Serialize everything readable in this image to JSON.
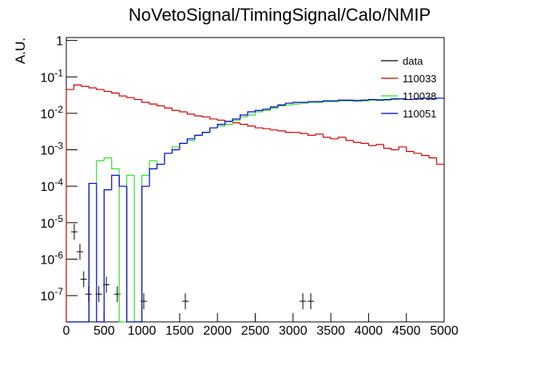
{
  "chart_data": {
    "type": "histogram",
    "title": "NoVetoSignal/TimingSignal/Calo/NMIP",
    "y_label": "A.U.",
    "log_y": true,
    "legend": "top-right",
    "bins": [
      0,
      100,
      200,
      300,
      400,
      500,
      600,
      700,
      800,
      900,
      1000,
      1100,
      1200,
      1300,
      1400,
      1500,
      1600,
      1700,
      1800,
      1900,
      2000,
      2100,
      2200,
      2300,
      2400,
      2500,
      2600,
      2700,
      2800,
      2900,
      3000,
      3100,
      3200,
      3300,
      3400,
      3500,
      3600,
      3700,
      3800,
      3900,
      4000,
      4100,
      4200,
      4300,
      4400,
      4500,
      4600,
      4700,
      4800,
      4900,
      5000
    ],
    "series": [
      {
        "name": "data",
        "color": "#000000",
        "type": "scatter",
        "x": [
          105,
          180,
          230,
          295,
          430,
          530,
          675,
          1025,
          1575,
          3130,
          3235
        ],
        "values": [
          5.6e-06,
          1.6e-06,
          2.8e-07,
          1.1e-07,
          1.1e-07,
          2e-07,
          1.1e-07,
          7e-08,
          7e-08,
          7e-08,
          7e-08
        ]
      },
      {
        "name": "110033",
        "color": "#cc0000",
        "values": [
          0.045,
          0.06,
          0.055,
          0.05,
          0.045,
          0.04,
          0.036,
          0.03,
          0.027,
          0.024,
          0.02,
          0.018,
          0.016,
          0.014,
          0.012,
          0.011,
          0.0095,
          0.0085,
          0.008,
          0.007,
          0.0065,
          0.006,
          0.0055,
          0.005,
          0.0045,
          0.004,
          0.0038,
          0.0035,
          0.0033,
          0.003,
          0.003,
          0.0028,
          0.0025,
          0.0027,
          0.0022,
          0.002,
          0.0022,
          0.0018,
          0.0016,
          0.0015,
          0.0013,
          0.0014,
          0.0011,
          0.001,
          0.0012,
          0.0009,
          0.0008,
          0.0007,
          0.0006,
          0.0004
        ]
      },
      {
        "name": "110038",
        "color": "#33dd33",
        "values": [
          0,
          0,
          0,
          0.00012,
          0.0005,
          0.0006,
          0.0003,
          0,
          0.0002,
          0,
          0.0002,
          0.0005,
          0.0004,
          0.0008,
          0.0012,
          0.0015,
          0.0018,
          0.0025,
          0.003,
          0.004,
          0.0045,
          0.005,
          0.0065,
          0.008,
          0.009,
          0.011,
          0.012,
          0.014,
          0.016,
          0.017,
          0.018,
          0.019,
          0.02,
          0.02,
          0.021,
          0.021,
          0.022,
          0.022,
          0.023,
          0.022,
          0.023,
          0.024,
          0.023,
          0.024,
          0.025,
          0.024,
          0.025,
          0.026,
          0.025,
          0.026
        ]
      },
      {
        "name": "110051",
        "color": "#0000cc",
        "values": [
          0,
          0,
          0,
          0.00012,
          0,
          8e-05,
          0.0002,
          0.0001,
          0,
          0,
          0.0001,
          0.0003,
          0.0004,
          0.0008,
          0.001,
          0.0015,
          0.002,
          0.0025,
          0.003,
          0.004,
          0.005,
          0.006,
          0.007,
          0.009,
          0.011,
          0.012,
          0.013,
          0.015,
          0.017,
          0.019,
          0.02,
          0.02,
          0.021,
          0.021,
          0.022,
          0.022,
          0.023,
          0.023,
          0.022,
          0.023,
          0.024,
          0.023,
          0.024,
          0.025,
          0.025,
          0.024,
          0.025,
          0.026,
          0.025,
          0.026
        ]
      }
    ],
    "xlim": [
      0,
      5000
    ],
    "xticks": [
      0,
      500,
      1000,
      1500,
      2000,
      2500,
      3000,
      3500,
      4000,
      4500,
      5000
    ],
    "ylim": [
      1.9e-08,
      1.2
    ],
    "yticks": [
      {
        "value": 1e-07,
        "label": "10^-7"
      },
      {
        "value": 1e-06,
        "label": "10^-6"
      },
      {
        "value": 1e-05,
        "label": "10^-5"
      },
      {
        "value": 0.0001,
        "label": "10^-4"
      },
      {
        "value": 0.001,
        "label": "10^-3"
      },
      {
        "value": 0.01,
        "label": "10^-2"
      },
      {
        "value": 0.1,
        "label": "10^-1"
      },
      1
    ]
  }
}
